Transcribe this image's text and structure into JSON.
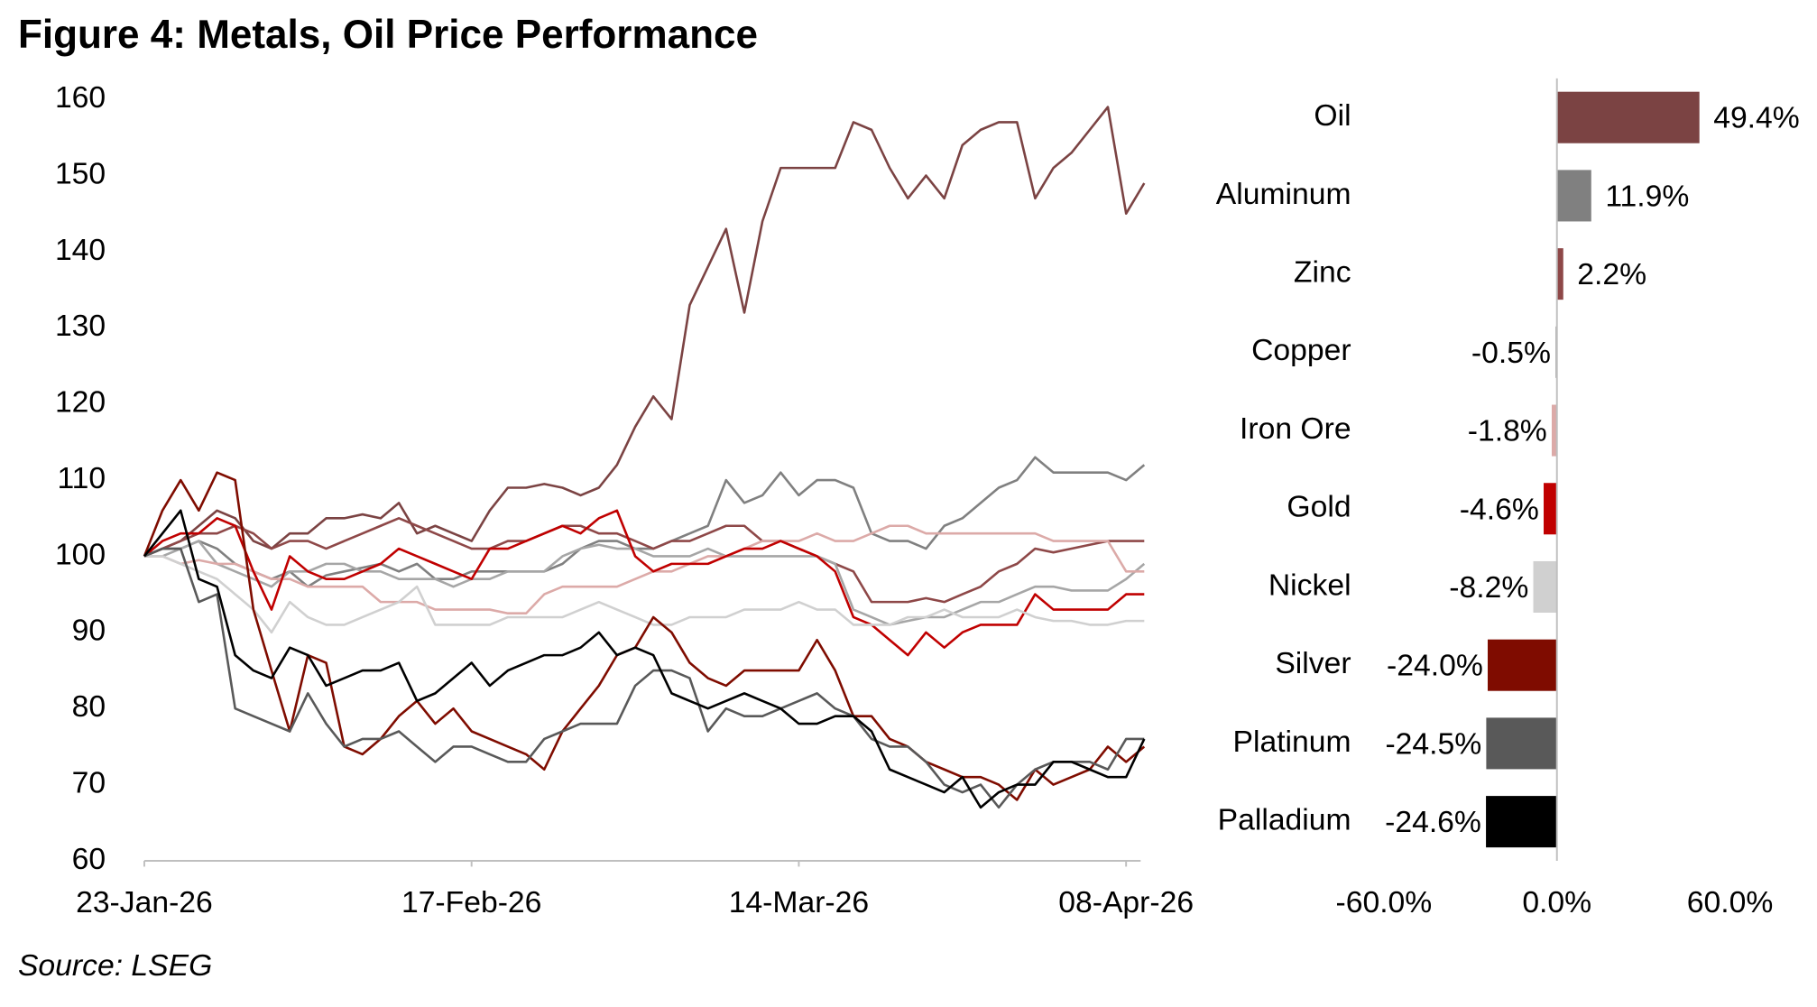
{
  "title": "Figure 4: Metals, Oil Price Performance",
  "source": "Source: LSEG",
  "chart_data": [
    {
      "type": "line",
      "categories": [
        "23-Jan-26",
        null,
        null,
        null,
        null,
        null,
        null,
        null,
        null,
        null,
        null,
        null,
        null,
        null,
        null,
        null,
        null,
        null,
        "17-Feb-26",
        null,
        null,
        null,
        null,
        null,
        null,
        null,
        null,
        null,
        null,
        null,
        null,
        null,
        null,
        null,
        null,
        null,
        "14-Mar-26",
        null,
        null,
        null,
        null,
        null,
        null,
        null,
        null,
        null,
        null,
        null,
        null,
        null,
        null,
        null,
        null,
        null,
        "08-Apr-26",
        null
      ],
      "ylim": [
        60,
        160
      ],
      "yticks": [
        60,
        70,
        80,
        90,
        100,
        110,
        120,
        130,
        140,
        150,
        160
      ],
      "series": [
        {
          "color": "#7b4343",
          "values": [
            100,
            101,
            102,
            104,
            106,
            105,
            102,
            101,
            103,
            103,
            105,
            105,
            105.5,
            105,
            107,
            103,
            104,
            103,
            102,
            106,
            109,
            109,
            109.5,
            109,
            108,
            109,
            112,
            117,
            121,
            118,
            133,
            138,
            143,
            132,
            144,
            151,
            151,
            151,
            151,
            157,
            156,
            151,
            147,
            150,
            147,
            154,
            156,
            157,
            157,
            147,
            151,
            153,
            156,
            159,
            145,
            149
          ]
        },
        {
          "color": "#808080",
          "values": [
            100,
            101,
            101,
            102,
            101,
            99,
            98,
            97,
            98,
            96,
            97.5,
            98,
            98.5,
            99,
            98,
            99,
            97,
            97,
            98,
            98,
            98,
            98,
            98,
            99,
            101,
            102,
            102,
            101,
            101,
            102,
            103,
            104,
            110,
            107,
            108,
            111,
            108,
            110,
            110,
            109,
            103,
            102,
            102,
            101,
            104,
            105,
            107,
            109,
            110,
            113,
            111,
            111,
            111,
            111,
            110,
            112
          ]
        },
        {
          "color": "#8e4848",
          "values": [
            100,
            101,
            102,
            103,
            103,
            104,
            103,
            101,
            102,
            102,
            101,
            102,
            103,
            104,
            105,
            104,
            103,
            102,
            101,
            101,
            102,
            102,
            103,
            104,
            104,
            103,
            103,
            102,
            101,
            102,
            102,
            103,
            104,
            104,
            102,
            102,
            101,
            100,
            99,
            98,
            94,
            94,
            94,
            94.5,
            94,
            95,
            96,
            98,
            99,
            101,
            100.5,
            101,
            101.5,
            102,
            102,
            102
          ]
        },
        {
          "color": "#a6a6a6",
          "values": [
            100,
            100,
            101,
            102,
            99,
            98,
            97,
            96,
            98,
            98,
            99,
            99,
            98,
            98,
            97,
            97,
            97,
            96,
            97,
            97,
            98,
            98,
            98,
            100,
            101,
            101.5,
            101,
            101,
            100,
            100,
            100,
            101,
            100,
            100,
            100,
            100,
            100,
            100,
            99,
            93,
            92,
            91,
            91.5,
            92,
            92,
            93,
            94,
            94,
            95,
            96,
            96,
            95.5,
            95.5,
            95.5,
            97,
            99
          ]
        },
        {
          "color": "#dcaaa8",
          "values": [
            100,
            100,
            99,
            99.5,
            99,
            99,
            98,
            97,
            97,
            96,
            96,
            96,
            96,
            94,
            94,
            94,
            93,
            93,
            93,
            93,
            92.5,
            92.5,
            95,
            96,
            96,
            96,
            96,
            97,
            98,
            98,
            99,
            100,
            100,
            101,
            102,
            102,
            102,
            103,
            102,
            102,
            103,
            104,
            104,
            103,
            103,
            103,
            103,
            103,
            103,
            103,
            102,
            102,
            102,
            102,
            98,
            98
          ]
        },
        {
          "color": "#c00000",
          "values": [
            100,
            102,
            103,
            103,
            105,
            104,
            98,
            93,
            100,
            98,
            97,
            97,
            98,
            99,
            101,
            100,
            99,
            98,
            97,
            101,
            101,
            102,
            103,
            104,
            103,
            105,
            106,
            100,
            98,
            99,
            99,
            99,
            100,
            101,
            101,
            102,
            101,
            100,
            98,
            92,
            91,
            89,
            87,
            90,
            88,
            90,
            91,
            91,
            91,
            95,
            93,
            93,
            93,
            93,
            95,
            95
          ]
        },
        {
          "color": "#d0d0d0",
          "values": [
            100,
            100,
            99,
            98,
            97,
            95,
            93,
            90,
            94,
            92,
            91,
            91,
            92,
            93,
            94,
            96,
            91,
            91,
            91,
            91,
            92,
            92,
            92,
            92,
            93,
            94,
            93,
            92,
            91,
            91,
            92,
            92,
            92,
            93,
            93,
            93,
            94,
            93,
            93,
            91,
            91,
            91,
            92,
            92,
            93,
            92,
            92,
            92,
            93,
            92,
            91.5,
            91.5,
            91,
            91,
            91.5,
            91.5
          ]
        },
        {
          "color": "#7f0c00",
          "values": [
            100,
            106,
            110,
            106,
            111,
            110,
            93,
            85,
            77,
            87,
            86,
            75,
            74,
            76,
            79,
            81,
            78,
            80,
            77,
            76,
            75,
            74,
            72,
            77,
            80,
            83,
            87,
            88,
            92,
            90,
            86,
            84,
            83,
            85,
            85,
            85,
            85,
            89,
            85,
            79,
            79,
            76,
            75,
            73,
            72,
            71,
            71,
            70,
            68,
            72,
            70,
            71,
            72,
            75,
            73,
            75
          ]
        },
        {
          "color": "#595959",
          "values": [
            100,
            101,
            101,
            94,
            95,
            80,
            79,
            78,
            77,
            82,
            78,
            75,
            76,
            76,
            77,
            75,
            73,
            75,
            75,
            74,
            73,
            73,
            76,
            77,
            78,
            78,
            78,
            83,
            85,
            85,
            84,
            77,
            80,
            79,
            79,
            80,
            81,
            82,
            80,
            79,
            76,
            75,
            75,
            73,
            70,
            69,
            70,
            67,
            70,
            72,
            73,
            73,
            73,
            72,
            76,
            76
          ]
        },
        {
          "color": "#000000",
          "values": [
            100,
            103,
            106,
            97,
            96,
            87,
            85,
            84,
            88,
            87,
            83,
            84,
            85,
            85,
            86,
            81,
            82,
            84,
            86,
            83,
            85,
            86,
            87,
            87,
            88,
            90,
            87,
            88,
            87,
            82,
            81,
            80,
            81,
            82,
            81,
            80,
            78,
            78,
            79,
            79,
            77,
            72,
            71,
            70,
            69,
            71,
            67,
            69,
            70,
            70,
            73,
            73,
            72,
            71,
            71,
            76
          ]
        }
      ]
    },
    {
      "type": "hbar",
      "categories": [
        "Oil",
        "Aluminum",
        "Zinc",
        "Copper",
        "Iron Ore",
        "Gold",
        "Nickel",
        "Silver",
        "Platinum",
        "Palladium"
      ],
      "values": [
        49.4,
        11.9,
        2.2,
        -0.5,
        -1.8,
        -4.6,
        -8.2,
        -24.0,
        -24.5,
        -24.6
      ],
      "value_labels": [
        "49.4%",
        "11.9%",
        "2.2%",
        "-0.5%",
        "-1.8%",
        "-4.6%",
        "-8.2%",
        "-24.0%",
        "-24.5%",
        "-24.6%"
      ],
      "colors": [
        "#7b4343",
        "#808080",
        "#8e4848",
        "#a6a6a6",
        "#dcaaa8",
        "#c00000",
        "#d0d0d0",
        "#7f0c00",
        "#595959",
        "#000000"
      ],
      "xlim": [
        -60,
        60
      ],
      "xticks": [
        {
          "value": -60,
          "label": "-60.0%"
        },
        {
          "value": 0,
          "label": "0.0%"
        },
        {
          "value": 60,
          "label": "60.0%"
        }
      ]
    }
  ]
}
